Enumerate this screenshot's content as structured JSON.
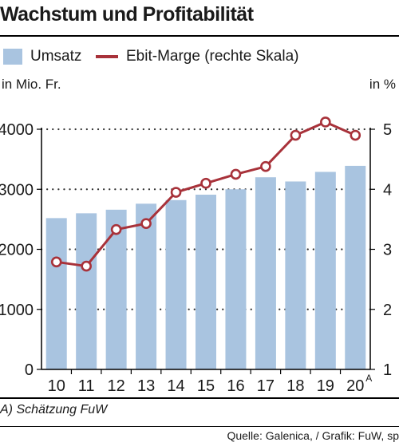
{
  "chart_data": {
    "type": "bar",
    "title": "Wachstum und Profitabilität",
    "categories": [
      "10",
      "11",
      "12",
      "13",
      "14",
      "15",
      "16",
      "17",
      "18",
      "19",
      "20"
    ],
    "category_suffix": {
      "10": "A"
    },
    "series": [
      {
        "name": "Umsatz",
        "type": "bar",
        "axis": "left",
        "color": "#a9c4e0",
        "values": [
          2520,
          2600,
          2660,
          2760,
          2820,
          2910,
          3000,
          3200,
          3130,
          3290,
          3390
        ]
      },
      {
        "name": "Ebit-Marge (rechte Skala)",
        "type": "line",
        "axis": "right",
        "color": "#a8323a",
        "values": [
          2.79,
          2.72,
          3.33,
          3.43,
          3.95,
          4.1,
          4.25,
          4.38,
          4.9,
          5.12,
          4.9
        ]
      }
    ],
    "ylabel_left": "in Mio. Fr.",
    "ylabel_right": "in %",
    "ylim_left": [
      0,
      4000
    ],
    "ylim_right": [
      1,
      5
    ],
    "yticks_left": [
      "0",
      "1000",
      "2000",
      "3000",
      "4000"
    ],
    "yticks_right": [
      "1",
      "2",
      "3",
      "4",
      "5"
    ],
    "grid": "dotted-horizontal"
  },
  "footnote": "A) Schätzung FuW",
  "source": "Quelle: Galenica, / Grafik: FuW, sp"
}
